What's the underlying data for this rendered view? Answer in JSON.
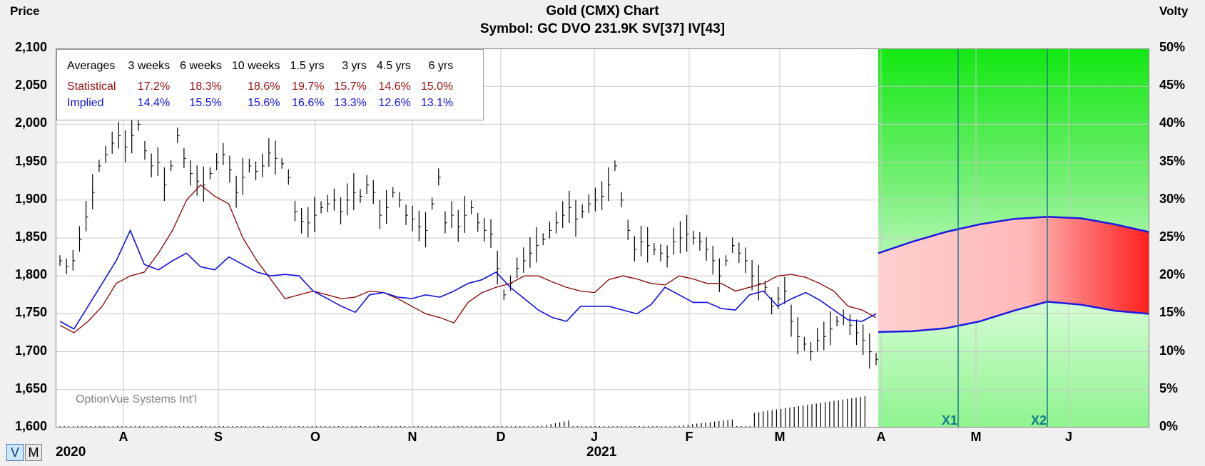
{
  "chart_data": {
    "type": "line",
    "title": "Gold (CMX) Chart",
    "subtitle": "Symbol: GC  DVO 231.9K  SV[37]  IV[43]",
    "ylabel": "Price",
    "y2label": "Volty",
    "ylim": [
      1600,
      2100
    ],
    "y2lim": [
      0,
      50
    ],
    "yticks": [
      "2,100",
      "2,050",
      "2,000",
      "1,950",
      "1,900",
      "1,850",
      "1,800",
      "1,750",
      "1,700",
      "1,650",
      "1,600"
    ],
    "y2ticks": [
      "50%",
      "45%",
      "40%",
      "35%",
      "30%",
      "25%",
      "20%",
      "15%",
      "10%",
      "5%",
      "0%"
    ],
    "months": [
      "A",
      "S",
      "O",
      "N",
      "D",
      "J",
      "F",
      "M",
      "A",
      "M",
      "J"
    ],
    "years": [
      "2020",
      "2021"
    ],
    "markers": [
      "X1",
      "X2"
    ],
    "watermark": "OptionVue Systems Int'l",
    "averages_table": {
      "headers": [
        "Averages",
        "3 weeks",
        "6 weeks",
        "10 weeks",
        "1.5 yrs",
        "3 yrs",
        "4.5 yrs",
        "6 yrs"
      ],
      "rows": [
        {
          "label": "Statistical",
          "values": [
            "17.2%",
            "18.3%",
            "18.6%",
            "19.7%",
            "15.7%",
            "14.6%",
            "15.0%"
          ]
        },
        {
          "label": "Implied",
          "values": [
            "14.4%",
            "15.5%",
            "15.6%",
            "16.6%",
            "13.3%",
            "12.6%",
            "13.1%"
          ]
        }
      ]
    },
    "bars": [
      1820,
      1812,
      1820,
      1848,
      1878,
      1910,
      1945,
      1960,
      1975,
      1985,
      1970,
      1985,
      2000,
      1965,
      1945,
      1950,
      1920,
      1945,
      1985,
      1955,
      1935,
      1925,
      1920,
      1935,
      1950,
      1960,
      1940,
      1910,
      1930,
      1945,
      1938,
      1945,
      1962,
      1955,
      1948,
      1930,
      1885,
      1872,
      1870,
      1880,
      1890,
      1895,
      1900,
      1885,
      1900,
      1910,
      1905,
      1920,
      1910,
      1880,
      1890,
      1910,
      1900,
      1880,
      1875,
      1865,
      1860,
      1895,
      1930,
      1870,
      1880,
      1865,
      1880,
      1890,
      1870,
      1860,
      1855,
      1810,
      1775,
      1790,
      1810,
      1820,
      1830,
      1840,
      1848,
      1860,
      1870,
      1880,
      1890,
      1875,
      1885,
      1895,
      1900,
      1905,
      1920,
      1945,
      1900,
      1860,
      1835,
      1845,
      1840,
      1835,
      1830,
      1825,
      1845,
      1850,
      1855,
      1850,
      1845,
      1835,
      1820,
      1800,
      1820,
      1840,
      1830,
      1820,
      1800,
      1790,
      1785,
      1760,
      1770,
      1780,
      1740,
      1720,
      1710,
      1700,
      1715,
      1720,
      1730,
      1740,
      1745,
      1735,
      1725,
      1715,
      1700,
      1690
    ],
    "series": [
      {
        "name": "Statistical",
        "color": "#8b0000",
        "values": [
          1735,
          1725,
          1740,
          1760,
          1790,
          1800,
          1805,
          1830,
          1860,
          1900,
          1920,
          1905,
          1895,
          1850,
          1820,
          1795,
          1770,
          1775,
          1780,
          1775,
          1770,
          1772,
          1780,
          1778,
          1770,
          1760,
          1750,
          1745,
          1738,
          1765,
          1778,
          1785,
          1790,
          1800,
          1800,
          1792,
          1785,
          1780,
          1778,
          1795,
          1800,
          1796,
          1790,
          1788,
          1800,
          1796,
          1790,
          1790,
          1780,
          1785,
          1790,
          1800,
          1802,
          1798,
          1790,
          1780,
          1760,
          1755,
          1745
        ]
      },
      {
        "name": "Implied",
        "color": "#1010e0",
        "values": [
          1740,
          1730,
          1760,
          1790,
          1820,
          1860,
          1815,
          1808,
          1820,
          1830,
          1812,
          1808,
          1825,
          1815,
          1805,
          1800,
          1802,
          1800,
          1780,
          1770,
          1760,
          1752,
          1775,
          1778,
          1772,
          1770,
          1775,
          1772,
          1780,
          1790,
          1795,
          1805,
          1785,
          1770,
          1755,
          1745,
          1740,
          1760,
          1760,
          1760,
          1755,
          1750,
          1762,
          1785,
          1775,
          1765,
          1765,
          1757,
          1755,
          1775,
          1780,
          1760,
          1770,
          1778,
          1768,
          1755,
          1742,
          1740,
          1750
        ]
      }
    ]
  }
}
